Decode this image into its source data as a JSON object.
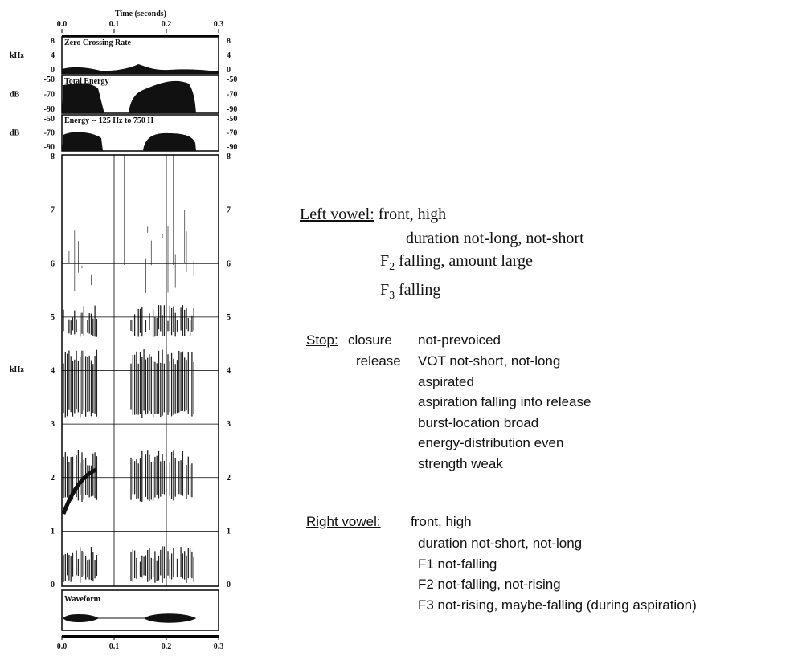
{
  "figure": {
    "time_axis": {
      "label": "Time (seconds)",
      "ticks": [
        "0.0",
        "0.1",
        "0.2",
        "0.3"
      ]
    },
    "panels": [
      {
        "title": "Zero Crossing Rate",
        "unit": "kHz",
        "ticks": [
          "8",
          "4",
          "0"
        ]
      },
      {
        "title": "Total Energy",
        "unit": "dB",
        "ticks": [
          "-50",
          "-70",
          "-90"
        ]
      },
      {
        "title": "Energy -- 125 Hz to 750 H",
        "unit": "dB",
        "ticks": [
          "-50",
          "-70",
          "-90"
        ]
      }
    ],
    "spectrogram": {
      "unit": "kHz",
      "ticks": [
        "8",
        "7",
        "6",
        "5",
        "4",
        "3",
        "2",
        "1",
        "0"
      ]
    },
    "waveform": {
      "title": "Waveform"
    }
  },
  "annotations": {
    "left_vowel": {
      "heading": "Left vowel:",
      "first": "front, high",
      "duration": "duration not-long, not-short",
      "f2": {
        "symbol": "F",
        "subscript": "2",
        "text": "falling, amount large"
      },
      "f3": {
        "symbol": "F",
        "subscript": "3",
        "text": "falling"
      }
    },
    "stop": {
      "heading": "Stop:",
      "closure_label": "closure",
      "closure": "not-prevoiced",
      "release_label": "release",
      "release": [
        "VOT not-short, not-long",
        "aspirated",
        "aspiration falling into release",
        "burst-location broad",
        "energy-distribution even",
        "strength weak"
      ]
    },
    "right_vowel": {
      "heading": "Right vowel:",
      "lines": [
        "front, high",
        "duration not-short, not-long",
        "F1 not-falling",
        "F2 not-falling, not-rising",
        "F3 not-rising, maybe-falling (during aspiration)"
      ]
    }
  }
}
